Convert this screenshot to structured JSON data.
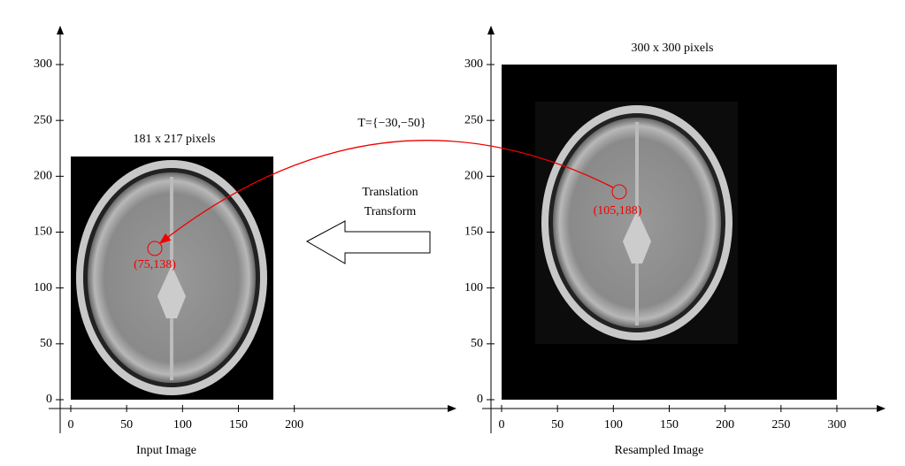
{
  "left_panel": {
    "caption": "Input Image",
    "size_label": "181 x 217 pixels",
    "xticks": [
      0,
      50,
      100,
      150,
      200
    ],
    "yticks": [
      0,
      50,
      100,
      150,
      200,
      250,
      300
    ],
    "point_label": "(75,138)"
  },
  "right_panel": {
    "caption": "Resampled Image",
    "size_label": "300 x 300 pixels",
    "xticks": [
      0,
      50,
      100,
      150,
      200,
      250,
      300
    ],
    "yticks": [
      0,
      50,
      100,
      150,
      200,
      250,
      300
    ],
    "point_label": "(105,188)"
  },
  "transform": {
    "parameters": "T={−30,−50}",
    "label_line1": "Translation",
    "label_line2": "Transform"
  }
}
